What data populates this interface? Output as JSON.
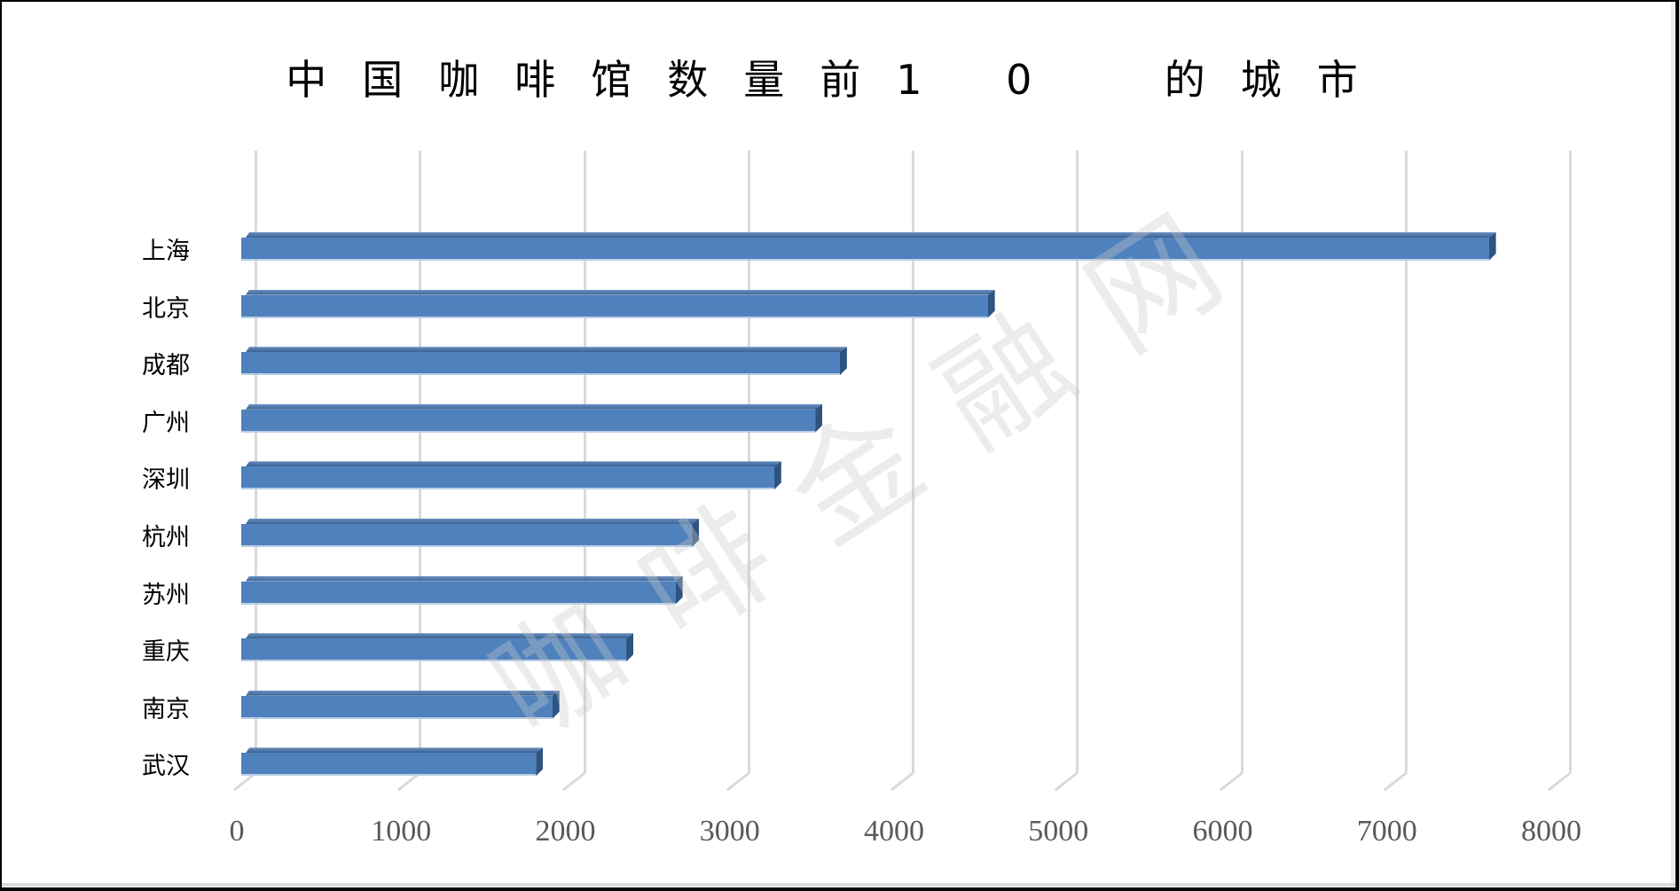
{
  "chart_data": {
    "type": "bar",
    "orientation": "horizontal",
    "style": "3d-clustered-bar",
    "title": "中国咖啡馆数量前10 的城市",
    "xlabel": "",
    "ylabel": "",
    "categories": [
      "上海",
      "北京",
      "成都",
      "广州",
      "深圳",
      "杭州",
      "苏州",
      "重庆",
      "南京",
      "武汉"
    ],
    "values": [
      7550,
      4500,
      3600,
      3450,
      3200,
      2700,
      2600,
      2300,
      1850,
      1750
    ],
    "xlim": [
      0,
      8000
    ],
    "xticks": [
      "0",
      "1000",
      "2000",
      "3000",
      "4000",
      "5000",
      "6000",
      "7000",
      "8000"
    ],
    "grid": "vertical major gridlines",
    "legend": "none",
    "bar_color": "#4f81bd",
    "watermark": "咖啡金融网"
  },
  "title_display": "中国咖啡馆数量前1 0  的城市",
  "watermark_text": "咖啡金融网"
}
